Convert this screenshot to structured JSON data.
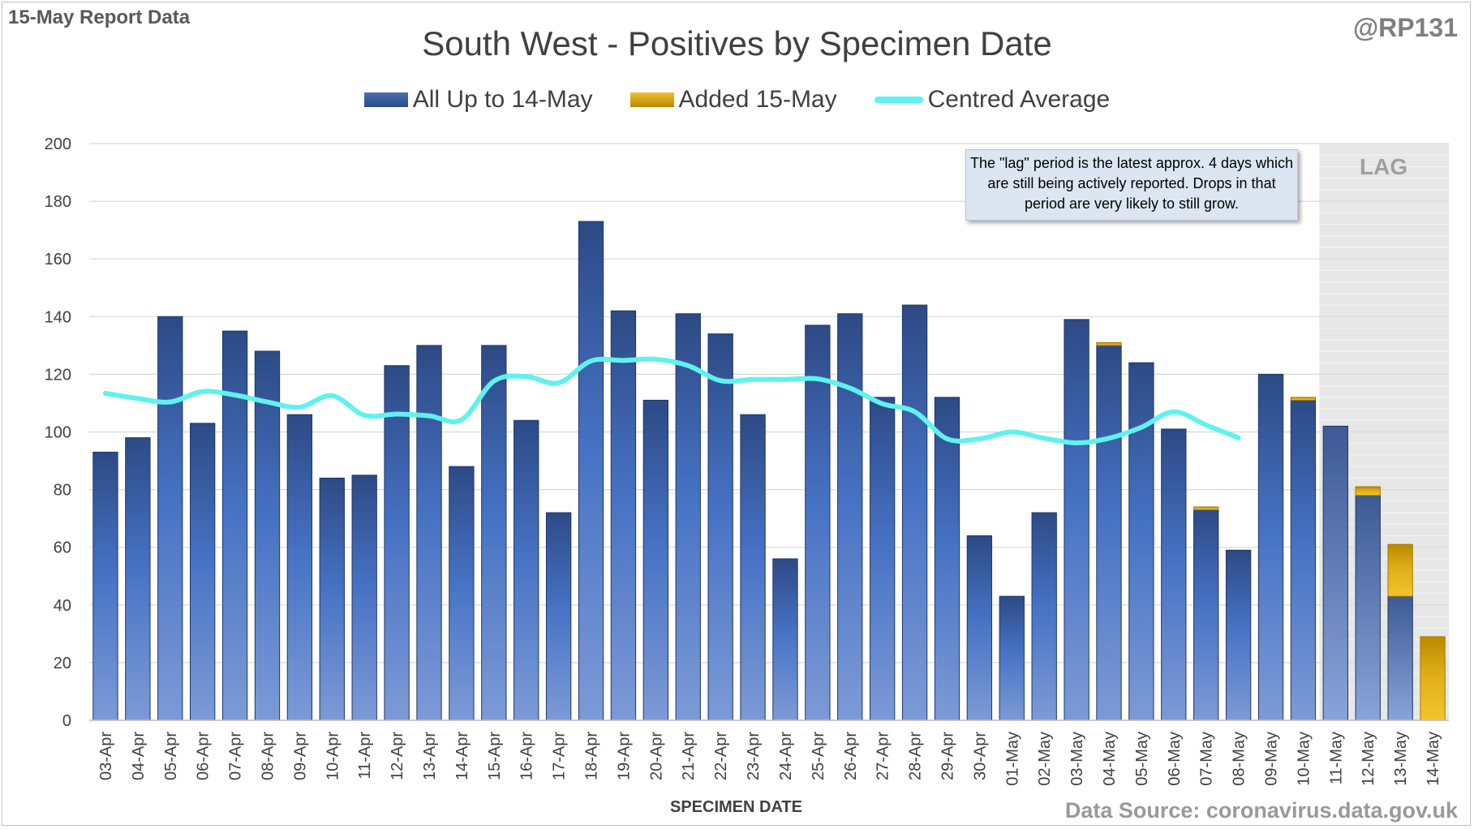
{
  "header": {
    "report_label": "15-May Report Data",
    "handle": "@RP131"
  },
  "legend": {
    "all_label": "All Up to 14-May",
    "added_label": "Added 15-May",
    "avg_label": "Centred Average"
  },
  "note": {
    "text": "The \"lag\" period is the latest approx. 4 days which are still being actively reported. Drops in that period are very likely to still grow."
  },
  "lag_label": "LAG",
  "footer": {
    "source": "Data Source: coronavirus.data.gov.uk"
  },
  "colors": {
    "bar_top": "#2d4a86",
    "bar_bottom": "#7d9ad6",
    "lag_bar_top": "#3e5a96",
    "lag_bar_bottom": "#8aa3d8",
    "added_top": "#f2c42e",
    "added_bottom": "#b98a00",
    "average_line": "#5ff2ee",
    "lag_shade": "#e7e7e7",
    "grid": "#d9d9d9"
  },
  "chart_data": {
    "type": "bar",
    "title": "South West - Positives by Specimen Date",
    "xlabel": "SPECIMEN DATE",
    "ylabel": "",
    "ylim": [
      0,
      200
    ],
    "yticks": [
      0,
      20,
      40,
      60,
      80,
      100,
      120,
      140,
      160,
      180,
      200
    ],
    "stacked": true,
    "categories": [
      "03-Apr",
      "04-Apr",
      "05-Apr",
      "06-Apr",
      "07-Apr",
      "08-Apr",
      "09-Apr",
      "10-Apr",
      "11-Apr",
      "12-Apr",
      "13-Apr",
      "14-Apr",
      "15-Apr",
      "16-Apr",
      "17-Apr",
      "18-Apr",
      "19-Apr",
      "20-Apr",
      "21-Apr",
      "22-Apr",
      "23-Apr",
      "24-Apr",
      "25-Apr",
      "26-Apr",
      "27-Apr",
      "28-Apr",
      "29-Apr",
      "30-Apr",
      "01-May",
      "02-May",
      "03-May",
      "04-May",
      "05-May",
      "06-May",
      "07-May",
      "08-May",
      "09-May",
      "10-May",
      "11-May",
      "12-May",
      "13-May",
      "14-May"
    ],
    "series": [
      {
        "name": "All Up to 14-May",
        "values": [
          93,
          98,
          140,
          103,
          135,
          128,
          106,
          84,
          85,
          123,
          130,
          88,
          130,
          104,
          72,
          173,
          142,
          111,
          141,
          134,
          106,
          56,
          137,
          141,
          112,
          144,
          112,
          64,
          43,
          72,
          139,
          130,
          124,
          101,
          73,
          59,
          120,
          111,
          102,
          78,
          43,
          0
        ]
      },
      {
        "name": "Added 15-May",
        "values": [
          0,
          0,
          0,
          0,
          0,
          0,
          0,
          0,
          0,
          0,
          0,
          0,
          0,
          0,
          0,
          0,
          0,
          0,
          0,
          0,
          0,
          0,
          0,
          0,
          0,
          0,
          0,
          0,
          0,
          0,
          0,
          1,
          0,
          0,
          1,
          0,
          0,
          1,
          0,
          3,
          18,
          29
        ]
      },
      {
        "name": "Centred Average",
        "type": "line",
        "values": [
          113.4,
          111.6,
          110.4,
          114.0,
          112.8,
          110.4,
          108.6,
          112.6,
          105.8,
          106.2,
          105.6,
          104.2,
          117.6,
          119.2,
          117.0,
          124.6,
          124.8,
          125.2,
          123.0,
          117.8,
          118.2,
          118.2,
          118.4,
          115.2,
          109.8,
          107.0,
          97.6,
          97.6,
          100.0,
          97.8,
          96.2,
          97.8,
          101.6,
          107.0,
          102.4,
          98.0,
          null,
          null,
          null,
          null,
          null,
          null
        ]
      }
    ],
    "lag_categories": [
      "11-May",
      "12-May",
      "13-May",
      "14-May"
    ],
    "grid": true,
    "legend_position": "top"
  }
}
